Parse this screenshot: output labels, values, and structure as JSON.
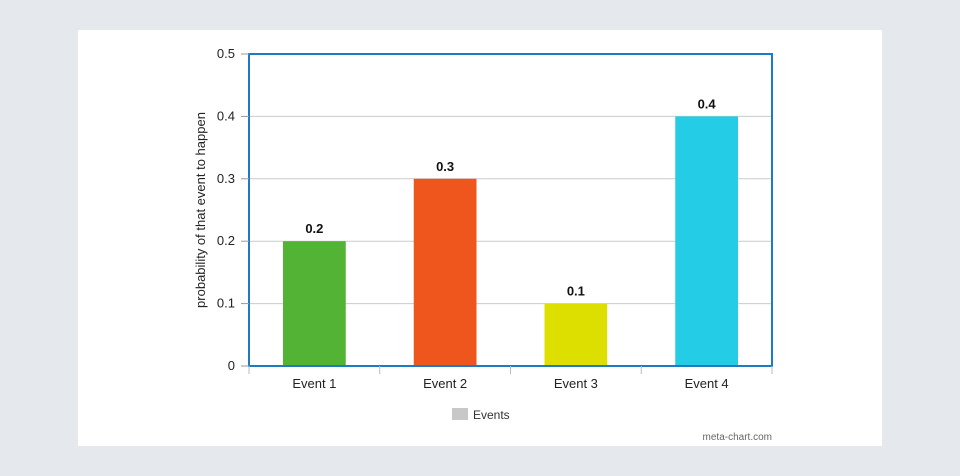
{
  "chart_data": {
    "type": "bar",
    "categories": [
      "Event 1",
      "Event 2",
      "Event 3",
      "Event 4"
    ],
    "series": [
      {
        "name": "Events",
        "values": [
          0.2,
          0.3,
          0.1,
          0.4
        ]
      }
    ],
    "data_labels": [
      "0.2",
      "0.3",
      "0.1",
      "0.4"
    ],
    "bar_colors": [
      "#52b335",
      "#ee561d",
      "#dcdf00",
      "#25cce5"
    ],
    "title": "",
    "xlabel": "",
    "ylabel": "probability of that event to happen",
    "ylim": [
      0,
      0.5
    ],
    "yticks": [
      0,
      0.1,
      0.2,
      0.3,
      0.4,
      0.5
    ],
    "ytick_labels": [
      "0",
      "0.1",
      "0.2",
      "0.3",
      "0.4",
      "0.5"
    ],
    "grid": true,
    "legend": {
      "position": "bottom",
      "swatch_color": "#c8c8c8"
    },
    "frame_color": "#1f7ac4",
    "gridline_color": "#cccccc"
  },
  "credit": "meta-chart.com"
}
